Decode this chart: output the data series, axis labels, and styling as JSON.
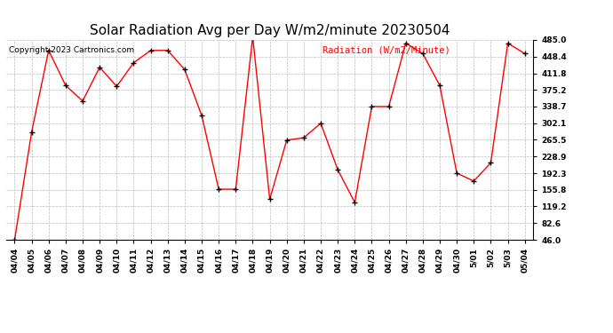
{
  "title": "Solar Radiation Avg per Day W/m2/minute 20230504",
  "copyright": "Copyright 2023 Cartronics.com",
  "legend_label": "Radiation (W/m2/Minute)",
  "dates": [
    "04/04",
    "04/05",
    "04/06",
    "04/07",
    "04/08",
    "04/09",
    "04/10",
    "04/11",
    "04/12",
    "04/13",
    "04/14",
    "04/15",
    "04/16",
    "04/17",
    "04/18",
    "04/19",
    "04/20",
    "04/21",
    "04/22",
    "04/23",
    "04/24",
    "04/25",
    "04/26",
    "04/27",
    "04/28",
    "04/29",
    "04/30",
    "5/01",
    "5/02",
    "5/03",
    "05/04"
  ],
  "values": [
    46.0,
    283.0,
    462.0,
    385.0,
    351.0,
    425.0,
    383.0,
    435.0,
    462.0,
    462.0,
    420.0,
    319.0,
    157.0,
    157.0,
    492.0,
    135.0,
    265.0,
    270.0,
    302.0,
    200.0,
    128.0,
    338.7,
    338.7,
    478.0,
    455.0,
    385.0,
    192.3,
    175.0,
    215.0,
    478.0,
    455.0
  ],
  "line_color": "red",
  "marker": "+",
  "marker_color": "black",
  "grid_color": "#bbbbbb",
  "bg_color": "white",
  "title_fontsize": 11,
  "copyright_fontsize": 6.5,
  "legend_fontsize": 7.5,
  "tick_fontsize": 6.5,
  "ymin": 46.0,
  "ymax": 485.0,
  "yticks": [
    46.0,
    82.6,
    119.2,
    155.8,
    192.3,
    228.9,
    265.5,
    302.1,
    338.7,
    375.2,
    411.8,
    448.4,
    485.0
  ]
}
